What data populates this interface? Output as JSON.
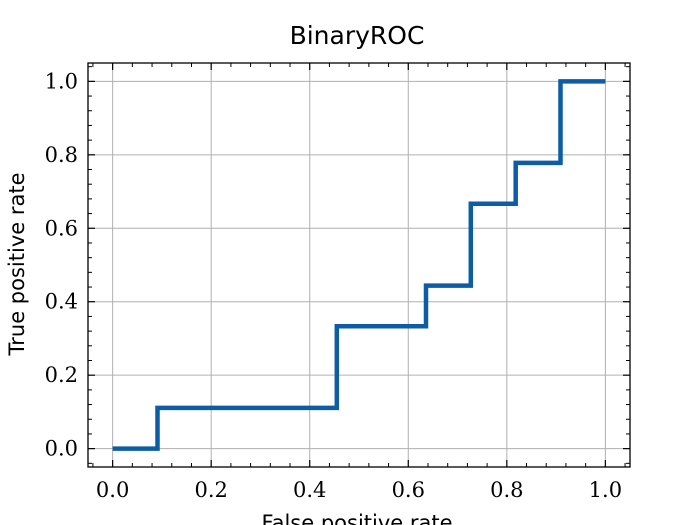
{
  "chart_data": {
    "type": "line",
    "title": "BinaryROC",
    "xlabel": "False positive rate",
    "ylabel": "True positive rate",
    "xlim": [
      -0.05,
      1.05
    ],
    "ylim": [
      -0.05,
      1.05
    ],
    "grid": true,
    "x_ticks": [
      "0.0",
      "0.2",
      "0.4",
      "0.6",
      "0.8",
      "1.0"
    ],
    "y_ticks": [
      "0.0",
      "0.2",
      "0.4",
      "0.6",
      "0.8",
      "1.0"
    ],
    "line_color": "#0c5da5",
    "series": [
      {
        "x": [
          0.0,
          0.091,
          0.091,
          0.455,
          0.455,
          0.636,
          0.636,
          0.727,
          0.727,
          0.818,
          0.818,
          0.909,
          0.909,
          1.0
        ],
        "y": [
          0.0,
          0.0,
          0.111,
          0.111,
          0.333,
          0.333,
          0.444,
          0.444,
          0.667,
          0.667,
          0.778,
          0.778,
          1.0,
          1.0
        ]
      }
    ]
  }
}
